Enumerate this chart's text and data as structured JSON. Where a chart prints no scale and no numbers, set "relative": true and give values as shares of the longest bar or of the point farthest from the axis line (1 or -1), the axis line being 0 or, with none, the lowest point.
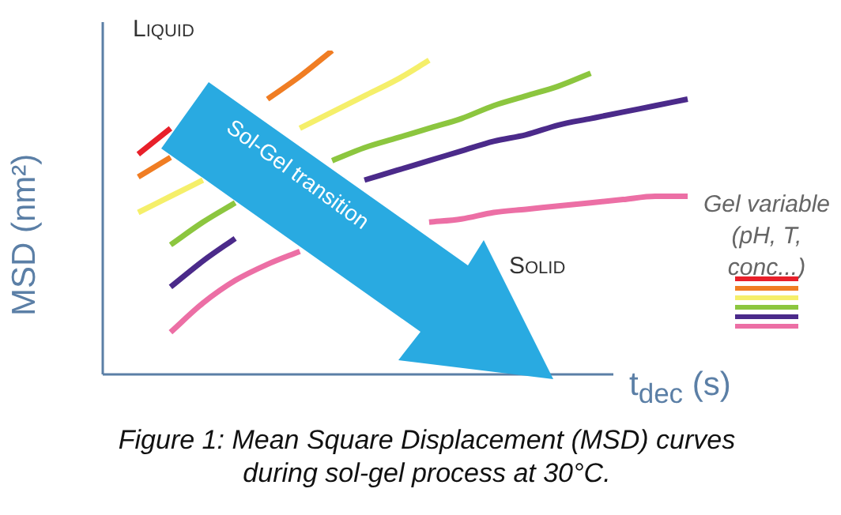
{
  "chart_data": {
    "type": "line",
    "relative": true,
    "legend": false,
    "ylabel": "MSD (nm²)",
    "xlabel": "t$_{dec}$ (s)",
    "categories": [
      null,
      null,
      null,
      null,
      null,
      null,
      null,
      null,
      null,
      null,
      null,
      null,
      null,
      null,
      null,
      null,
      null,
      null,
      null
    ],
    "series": [
      {
        "color": "#e8202a",
        "values": [
          null,
          0.68,
          0.76,
          null,
          null,
          null,
          null,
          null,
          null,
          null,
          null,
          null,
          null,
          null,
          null,
          null,
          null,
          null,
          null
        ]
      },
      {
        "color": "#f07d23",
        "values": [
          null,
          0.61,
          0.67,
          null,
          null,
          0.85,
          0.92,
          1.0,
          null,
          null,
          null,
          null,
          null,
          null,
          null,
          null,
          null,
          null,
          null
        ]
      },
      {
        "color": "#f5ef6a",
        "values": [
          null,
          0.5,
          0.55,
          0.6,
          null,
          null,
          0.76,
          0.81,
          0.86,
          0.91,
          0.97,
          null,
          null,
          null,
          null,
          null,
          null,
          null,
          null
        ]
      },
      {
        "color": "#8cc63f",
        "values": [
          null,
          null,
          0.4,
          0.47,
          0.53,
          null,
          null,
          0.66,
          0.7,
          0.73,
          0.76,
          0.79,
          0.83,
          0.86,
          0.89,
          0.93,
          null,
          null,
          null
        ]
      },
      {
        "color": "#4b2a8a",
        "values": [
          null,
          null,
          0.27,
          0.35,
          0.42,
          null,
          null,
          null,
          0.6,
          0.63,
          0.66,
          0.69,
          0.72,
          0.74,
          0.77,
          0.79,
          0.81,
          0.83,
          0.85
        ]
      },
      {
        "color": "#ec6fa5",
        "values": [
          null,
          null,
          0.13,
          0.22,
          0.29,
          0.34,
          0.38,
          null,
          null,
          null,
          0.47,
          0.48,
          0.5,
          0.51,
          0.52,
          0.53,
          0.54,
          0.55,
          0.55
        ]
      }
    ],
    "marker": "none",
    "annotations": [
      "Liquid",
      "Solid",
      "Sol-Gel transition",
      "Gel variable (pH, T, conc...)",
      "Figure 1: Mean Square Displacement (MSD) curves during sol-gel process at 30°C."
    ]
  }
}
